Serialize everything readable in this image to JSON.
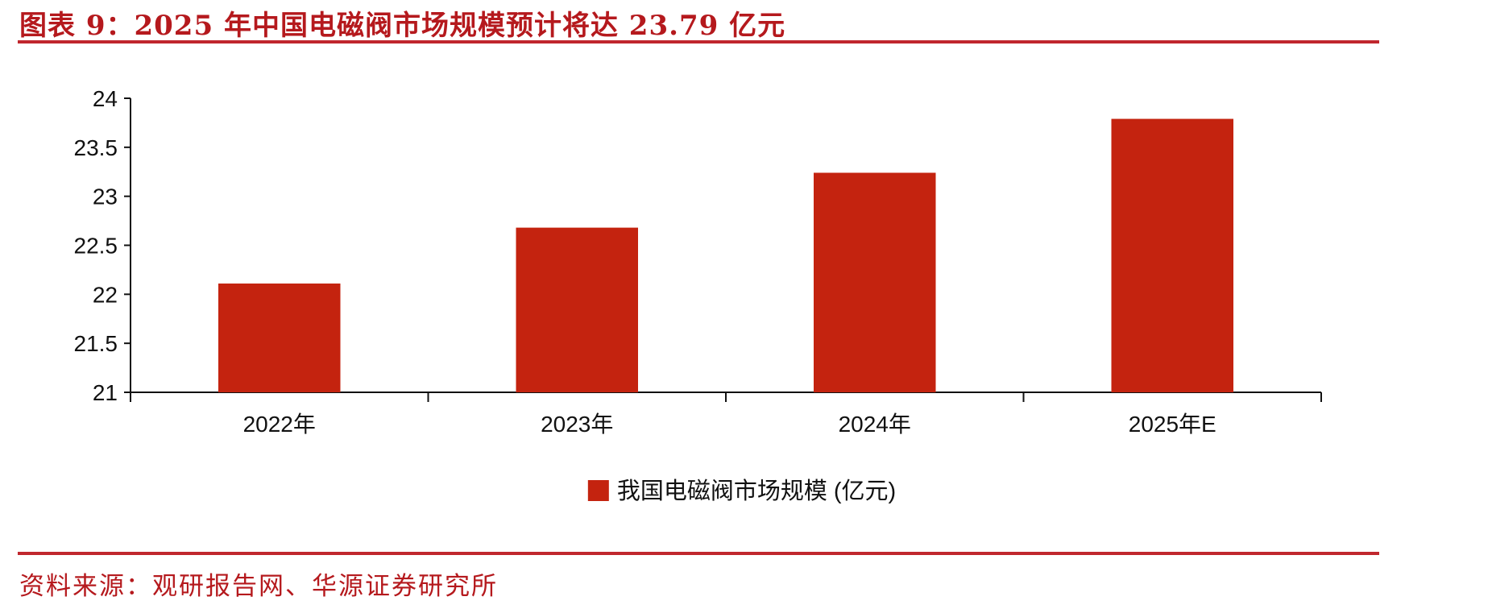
{
  "title": "图表 9：2025 年中国电磁阀市场规模预计将达 23.79 亿元",
  "source": "资料来源：观研报告网、华源证券研究所",
  "chart_data": {
    "type": "bar",
    "categories": [
      "2022年",
      "2023年",
      "2024年",
      "2025年E"
    ],
    "series": [
      {
        "name": "我国电磁阀市场规模 (亿元)",
        "values": [
          22.11,
          22.68,
          23.24,
          23.79
        ],
        "color": "#c4230f"
      }
    ],
    "ylim": [
      21,
      24
    ],
    "yticks": [
      "21",
      "21.5",
      "22",
      "22.5",
      "23",
      "23.5",
      "24"
    ],
    "legend": "bottom-center",
    "grid": false
  }
}
